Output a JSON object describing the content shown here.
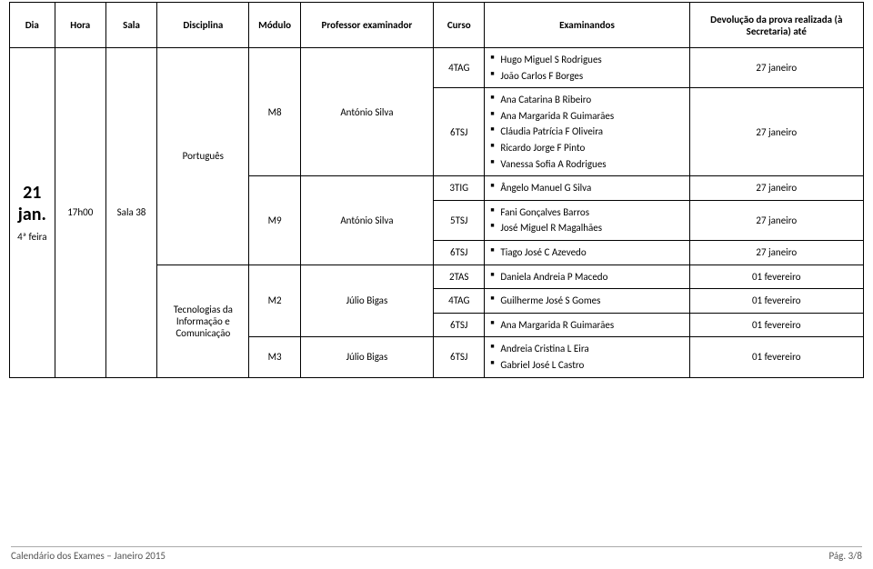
{
  "header": {
    "dia": "Dia",
    "hora": "Hora",
    "sala": "Sala",
    "disciplina": "Disciplina",
    "modulo": "Módulo",
    "professor": "Professor examinador",
    "curso": "Curso",
    "examinandos": "Examinandos",
    "devolucao": "Devolução da prova realizada (à Secretaria) até"
  },
  "dia": {
    "num": "21",
    "mes": "jan.",
    "weekday": "4ª feira"
  },
  "hora": "17h00",
  "sala": "Sala 38",
  "disciplinas": {
    "portugues": "Português",
    "tecnologias": "Tecnologias da Informação e Comunicação"
  },
  "rows": {
    "r1": {
      "modulo": "M8",
      "prof": "António Silva",
      "curso": "4TAG",
      "ex": [
        "Hugo Miguel S Rodrigues",
        "João Carlos F Borges"
      ],
      "dev": "27 janeiro"
    },
    "r2": {
      "curso": "6TSJ",
      "ex": [
        "Ana Catarina B Ribeiro",
        "Ana Margarida R Guimarães",
        "Cláudia Patrícia F Oliveira",
        "Ricardo Jorge F Pinto",
        "Vanessa Sofia A Rodrigues"
      ],
      "dev": "27 janeiro"
    },
    "r3": {
      "modulo": "M9",
      "prof": "António Silva",
      "curso": "3TIG",
      "ex": [
        "Ângelo Manuel G Silva"
      ],
      "dev": "27 janeiro"
    },
    "r4": {
      "curso": "5TSJ",
      "ex": [
        "Fani Gonçalves Barros",
        "José Miguel R Magalhães"
      ],
      "dev": "27 janeiro"
    },
    "r5": {
      "curso": "6TSJ",
      "ex": [
        "Tiago José C Azevedo"
      ],
      "dev": "27 janeiro"
    },
    "r6": {
      "modulo": "M2",
      "prof": "Júlio Bigas",
      "curso": "2TAS",
      "ex": [
        "Daniela Andreia P Macedo"
      ],
      "dev": "01 fevereiro"
    },
    "r7": {
      "curso": "4TAG",
      "ex": [
        "Guilherme José S Gomes"
      ],
      "dev": "01 fevereiro"
    },
    "r8": {
      "curso": "6TSJ",
      "ex": [
        "Ana Margarida R Guimarães"
      ],
      "dev": "01 fevereiro"
    },
    "r9": {
      "modulo": "M3",
      "prof": "Júlio Bigas",
      "curso": "6TSJ",
      "ex": [
        "Andreia Cristina L Eira",
        "Gabriel José L Castro"
      ],
      "dev": "01 fevereiro"
    }
  },
  "footer": {
    "left": "Calendário dos Exames – Janeiro 2015",
    "right": "Pág. 3/8"
  }
}
